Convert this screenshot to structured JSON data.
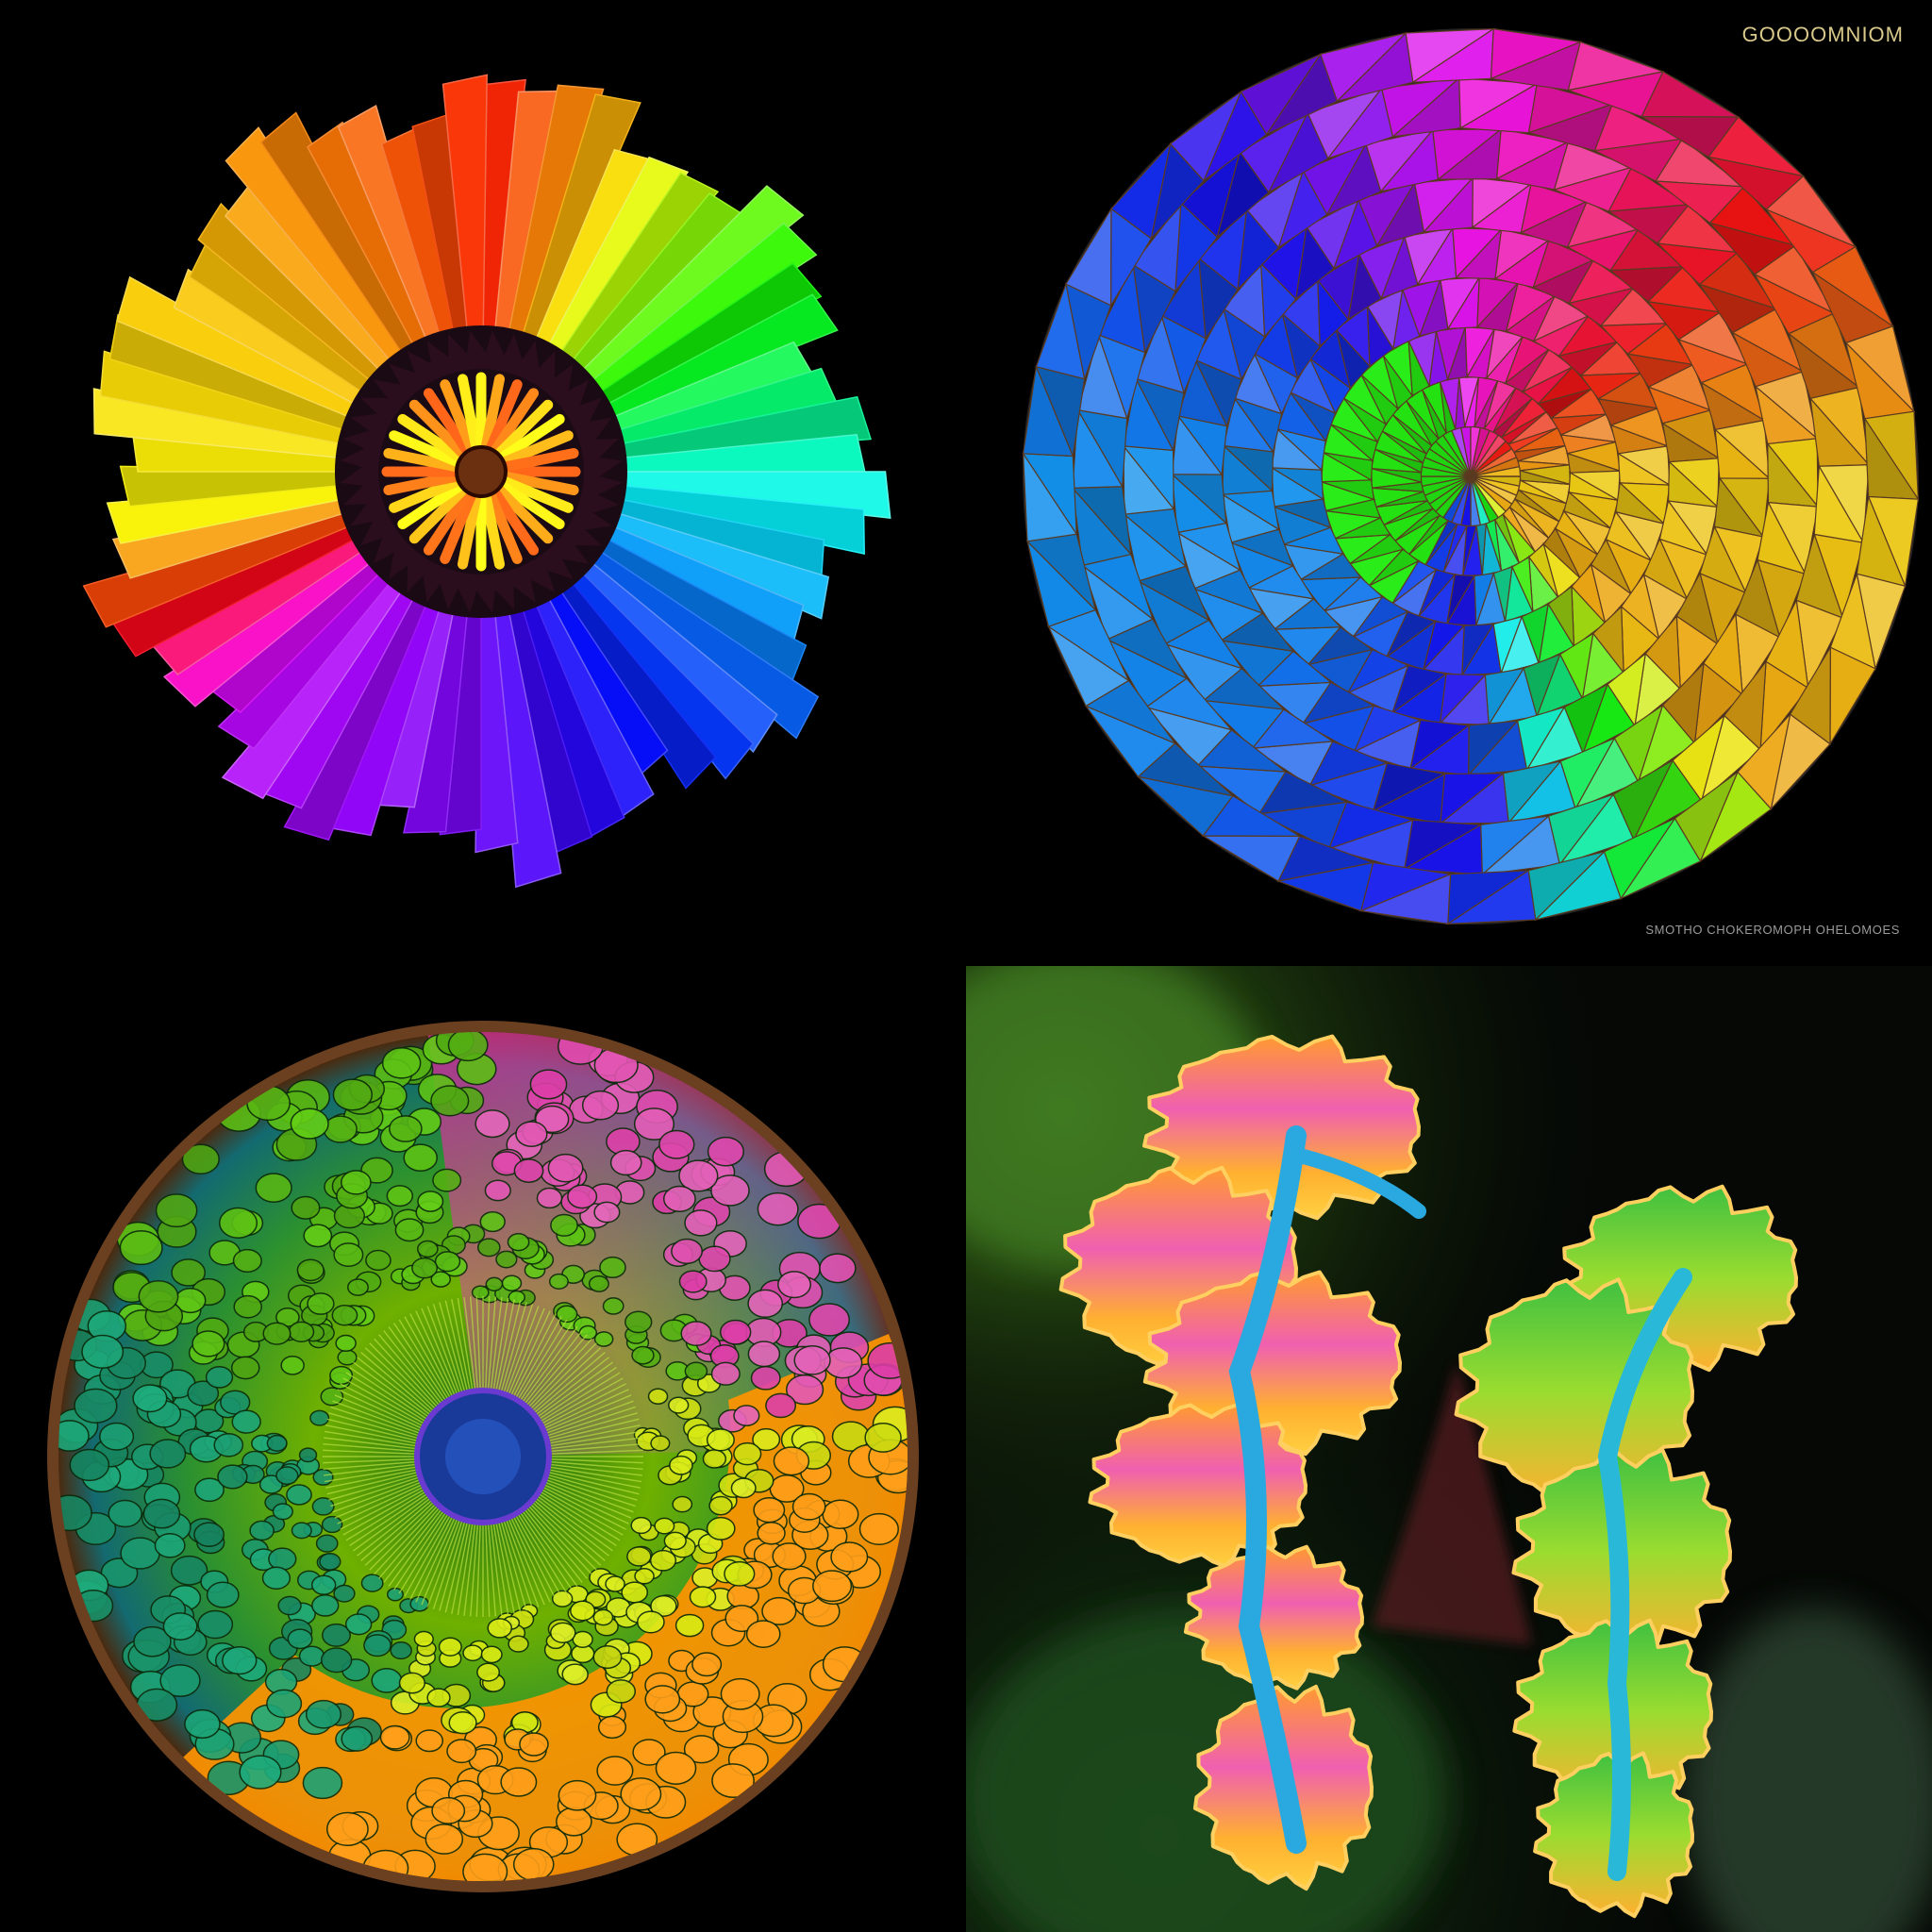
{
  "panels": [
    {
      "name": "rainbow-fan-wheel"
    },
    {
      "name": "faceted-color-sphere"
    },
    {
      "name": "cellular-cross-section"
    },
    {
      "name": "ruffled-coral-organisms"
    }
  ],
  "watermark_top": "GOOOOMNIOM",
  "caption_bottom": "SMOTHO CHOKEROMOPH OHELOMOES",
  "colors": {
    "background": "#000000",
    "wheel": [
      "#ff2a00",
      "#ff8c00",
      "#ffe000",
      "#c8ff00",
      "#55d000",
      "#10a830",
      "#0b8a7a",
      "#1e50ff",
      "#3b1fd8",
      "#7a1ff0",
      "#b040ff",
      "#c0c0c0"
    ]
  }
}
